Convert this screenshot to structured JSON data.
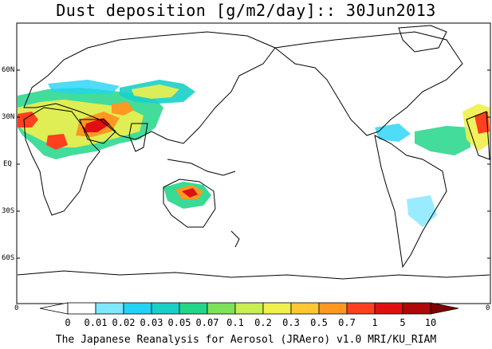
{
  "title": "Dust deposition [g/m2/day]:: 30Jun2013",
  "lat_labels": [
    "60N",
    "30N",
    "EQ",
    "30S",
    "60S"
  ],
  "lon_labels": [
    "0",
    "0"
  ],
  "colorbar": {
    "labels": [
      "0",
      "0.01",
      "0.02",
      "0.03",
      "0.05",
      "0.07",
      "0.1",
      "0.2",
      "0.3",
      "0.5",
      "0.7",
      "1",
      "5",
      "10"
    ],
    "colors": [
      "#ffffff",
      "#ffffff",
      "#7fe7ff",
      "#22d3f5",
      "#18d0c8",
      "#22d68a",
      "#7de25a",
      "#c8ee50",
      "#eff04c",
      "#ffc832",
      "#ff9820",
      "#ff4020",
      "#e01010",
      "#b00808",
      "#800000"
    ]
  },
  "footer": "The Japanese Reanalysis for Aerosol (JRAero) v1.0 MRI/KU_RIAM"
}
